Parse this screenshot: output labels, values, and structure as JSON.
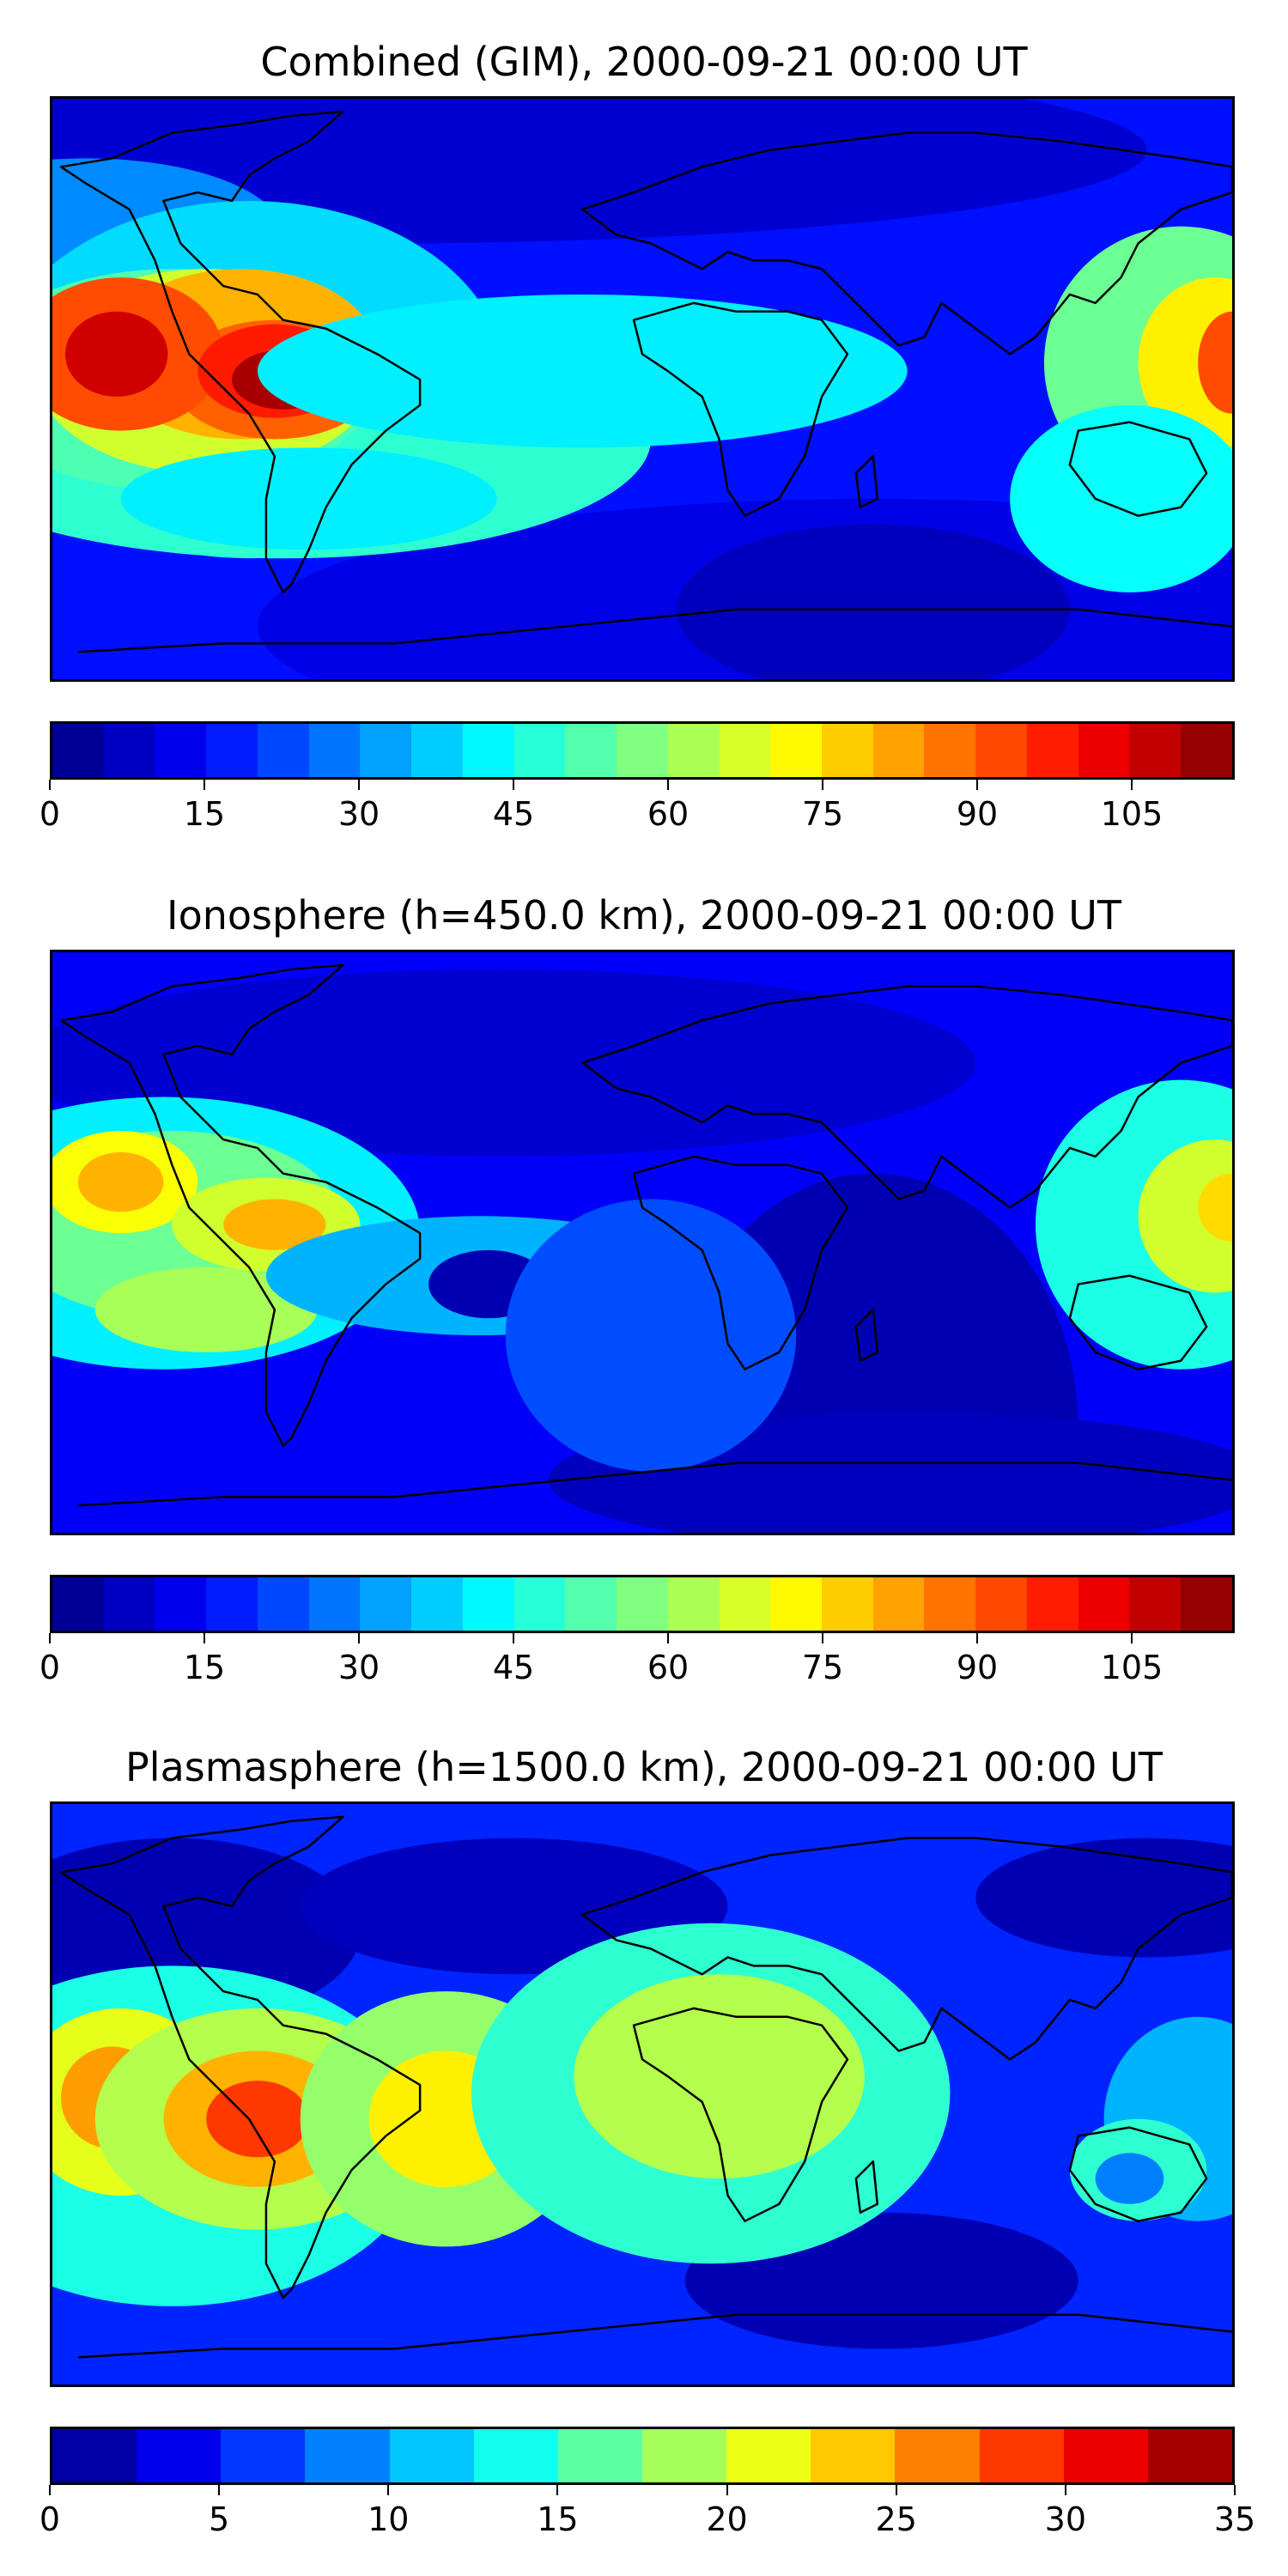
{
  "panels": [
    {
      "title": "Combined (GIM), 2000-09-21 00:00 UT",
      "colorbar": {
        "min": 0,
        "max": 115,
        "ticks": [
          "0",
          "15",
          "30",
          "45",
          "60",
          "75",
          "90",
          "105"
        ],
        "tick_values": [
          0,
          15,
          30,
          45,
          60,
          75,
          90,
          105
        ],
        "levels": 23
      },
      "field": "combined"
    },
    {
      "title": "Ionosphere  (h=450.0 km), 2000-09-21 00:00 UT",
      "colorbar": {
        "min": 0,
        "max": 115,
        "ticks": [
          "0",
          "15",
          "30",
          "45",
          "60",
          "75",
          "90",
          "105"
        ],
        "tick_values": [
          0,
          15,
          30,
          45,
          60,
          75,
          90,
          105
        ],
        "levels": 23
      },
      "field": "ionosphere"
    },
    {
      "title": "Plasmasphere (h=1500.0 km), 2000-09-21 00:00 UT",
      "colorbar": {
        "min": 0,
        "max": 35,
        "ticks": [
          "0",
          "5",
          "10",
          "15",
          "20",
          "25",
          "30",
          "35"
        ],
        "tick_values": [
          0,
          5,
          10,
          15,
          20,
          25,
          30,
          35
        ],
        "levels": 14
      },
      "field": "plasmasphere"
    }
  ],
  "colormap": "jet",
  "colors": {
    "coastline": "#000000",
    "frame": "#000000",
    "background": "#ffffff"
  }
}
